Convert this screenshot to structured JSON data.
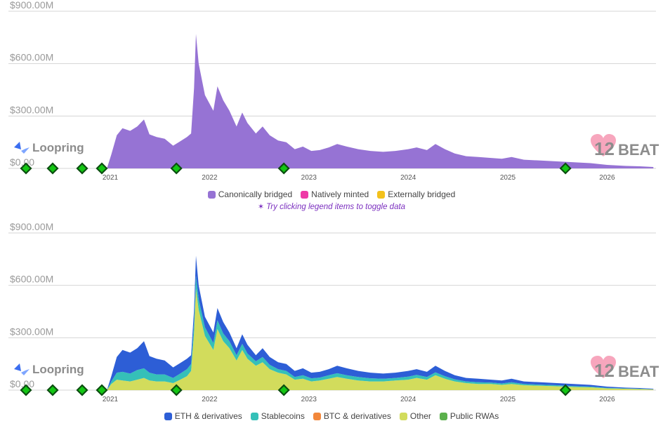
{
  "colors": {
    "canonically_bridged": "#9673d4",
    "natively_minted": "#ee3aa6",
    "externally_bridged": "#f3c11c",
    "eth": "#2d5ed6",
    "stablecoins": "#35c0b8",
    "btc": "#f2873a",
    "other": "#d2dc5c",
    "public_rwas": "#5bb04c",
    "milestone_fill": "#13c613",
    "milestone_border": "#0b4d10",
    "heart": "#f7a6bd"
  },
  "branding": {
    "project_name": "Loopring",
    "watermark_digits": "12",
    "watermark_word": "BEAT"
  },
  "hint": {
    "icon": "pointer-click-icon",
    "text": "Try clicking legend items to toggle data"
  },
  "legend_top": [
    {
      "label": "Canonically bridged",
      "color": "#9673d4"
    },
    {
      "label": "Natively minted",
      "color": "#ee3aa6"
    },
    {
      "label": "Externally bridged",
      "color": "#f3c11c"
    }
  ],
  "legend_bottom": [
    {
      "label": "ETH & derivatives",
      "color": "#2d5ed6"
    },
    {
      "label": "Stablecoins",
      "color": "#35c0b8"
    },
    {
      "label": "BTC & derivatives",
      "color": "#f2873a"
    },
    {
      "label": "Other",
      "color": "#d2dc5c"
    },
    {
      "label": "Public RWAs",
      "color": "#5bb04c"
    }
  ],
  "chart_data": [
    {
      "type": "area",
      "stacked": true,
      "x_ticks": [
        "2021",
        "2022",
        "2023",
        "2024",
        "2025",
        "2026"
      ],
      "y_ticks": [
        "$0.00",
        "$300.00M",
        "$600.00M",
        "$900.00M"
      ],
      "ylim": [
        0,
        900
      ],
      "y_unit": "USD millions",
      "grid": true,
      "legend_position": "bottom",
      "milestones": [
        "2020-01-20",
        "2020-05-10",
        "2020-09-05",
        "2020-12-10",
        "2021-09-01",
        "2022-10-01",
        "2025-08-01"
      ],
      "x": [
        "2020-12-20",
        "2021-01-05",
        "2021-01-25",
        "2021-02-15",
        "2021-03-15",
        "2021-04-10",
        "2021-05-05",
        "2021-05-25",
        "2021-06-20",
        "2021-07-20",
        "2021-08-20",
        "2021-09-15",
        "2021-10-10",
        "2021-10-25",
        "2021-11-05",
        "2021-11-12",
        "2021-11-22",
        "2021-12-15",
        "2022-01-15",
        "2022-01-30",
        "2022-02-20",
        "2022-03-15",
        "2022-04-10",
        "2022-05-01",
        "2022-05-20",
        "2022-06-20",
        "2022-07-15",
        "2022-08-10",
        "2022-09-10",
        "2022-10-10",
        "2022-11-10",
        "2022-12-10",
        "2023-01-10",
        "2023-02-10",
        "2023-03-15",
        "2023-04-15",
        "2023-05-20",
        "2023-07-01",
        "2023-08-15",
        "2023-10-01",
        "2023-11-15",
        "2024-01-01",
        "2024-02-01",
        "2024-03-10",
        "2024-04-10",
        "2024-05-15",
        "2024-06-20",
        "2024-08-01",
        "2024-09-15",
        "2024-11-01",
        "2024-12-10",
        "2025-01-15",
        "2025-03-01",
        "2025-05-01",
        "2025-07-01",
        "2025-09-01",
        "2025-11-01",
        "2026-01-01",
        "2026-03-01",
        "2026-05-01",
        "2026-06-20"
      ],
      "series": [
        {
          "name": "Canonically bridged",
          "values": [
            2,
            80,
            190,
            230,
            215,
            240,
            280,
            195,
            180,
            170,
            130,
            155,
            180,
            200,
            460,
            770,
            600,
            420,
            330,
            470,
            390,
            330,
            240,
            320,
            260,
            200,
            240,
            190,
            160,
            150,
            110,
            125,
            100,
            105,
            120,
            140,
            125,
            110,
            100,
            95,
            100,
            110,
            120,
            105,
            140,
            110,
            85,
            70,
            65,
            60,
            55,
            65,
            50,
            45,
            40,
            35,
            30,
            20,
            15,
            12,
            8
          ]
        },
        {
          "name": "Natively minted",
          "values": [
            0,
            0,
            0,
            0,
            0,
            0,
            0,
            0,
            0,
            0,
            0,
            0,
            0,
            0,
            0,
            0,
            0,
            0,
            0,
            0,
            0,
            0,
            0,
            0,
            0,
            0,
            0,
            0,
            0,
            0,
            0,
            0,
            0,
            0,
            0,
            0,
            0,
            0,
            0,
            0,
            0,
            0,
            0,
            0,
            0,
            0,
            0,
            0,
            0,
            0,
            0,
            0,
            0,
            0,
            0,
            0,
            0,
            0,
            0,
            0,
            0
          ]
        },
        {
          "name": "Externally bridged",
          "values": [
            0,
            0,
            0,
            0,
            0,
            0,
            0,
            0,
            0,
            0,
            0,
            0,
            0,
            0,
            0,
            0,
            0,
            0,
            0,
            0,
            0,
            0,
            0,
            0,
            0,
            0,
            0,
            0,
            0,
            0,
            0,
            0,
            0,
            0,
            0,
            0,
            0,
            0,
            0,
            0,
            0,
            0,
            0,
            0,
            0,
            0,
            0,
            0,
            0,
            0,
            0,
            0,
            0,
            0,
            0,
            0,
            0,
            0,
            0,
            0,
            0
          ]
        }
      ]
    },
    {
      "type": "area",
      "stacked": true,
      "x_ticks": [
        "2021",
        "2022",
        "2023",
        "2024",
        "2025",
        "2026"
      ],
      "y_ticks": [
        "$0.00",
        "$300.00M",
        "$600.00M",
        "$900.00M"
      ],
      "ylim": [
        0,
        900
      ],
      "y_unit": "USD millions",
      "grid": true,
      "legend_position": "bottom",
      "milestones": [
        "2020-01-20",
        "2020-05-10",
        "2020-09-05",
        "2020-12-10",
        "2021-09-01",
        "2022-10-01",
        "2025-08-01"
      ],
      "x": [
        "2020-12-20",
        "2021-01-05",
        "2021-01-25",
        "2021-02-15",
        "2021-03-15",
        "2021-04-10",
        "2021-05-05",
        "2021-05-25",
        "2021-06-20",
        "2021-07-20",
        "2021-08-20",
        "2021-09-15",
        "2021-10-10",
        "2021-10-25",
        "2021-11-05",
        "2021-11-12",
        "2021-11-22",
        "2021-12-15",
        "2022-01-15",
        "2022-01-30",
        "2022-02-20",
        "2022-03-15",
        "2022-04-10",
        "2022-05-01",
        "2022-05-20",
        "2022-06-20",
        "2022-07-15",
        "2022-08-10",
        "2022-09-10",
        "2022-10-10",
        "2022-11-10",
        "2022-12-10",
        "2023-01-10",
        "2023-02-10",
        "2023-03-15",
        "2023-04-15",
        "2023-05-20",
        "2023-07-01",
        "2023-08-15",
        "2023-10-01",
        "2023-11-15",
        "2024-01-01",
        "2024-02-01",
        "2024-03-10",
        "2024-04-10",
        "2024-05-15",
        "2024-06-20",
        "2024-08-01",
        "2024-09-15",
        "2024-11-01",
        "2024-12-10",
        "2025-01-15",
        "2025-03-01",
        "2025-05-01",
        "2025-07-01",
        "2025-09-01",
        "2025-11-01",
        "2026-01-01",
        "2026-03-01",
        "2026-05-01",
        "2026-06-20"
      ],
      "series": [
        {
          "name": "Other",
          "values": [
            1,
            35,
            60,
            55,
            50,
            60,
            70,
            55,
            50,
            50,
            40,
            60,
            80,
            110,
            330,
            580,
            460,
            310,
            230,
            350,
            280,
            240,
            170,
            230,
            180,
            140,
            160,
            120,
            100,
            90,
            60,
            65,
            50,
            55,
            65,
            75,
            65,
            55,
            50,
            50,
            55,
            60,
            70,
            60,
            85,
            65,
            50,
            40,
            35,
            35,
            30,
            35,
            28,
            25,
            22,
            18,
            16,
            10,
            8,
            6,
            4
          ]
        },
        {
          "name": "Stablecoins",
          "values": [
            0,
            15,
            40,
            50,
            45,
            55,
            55,
            45,
            40,
            40,
            30,
            35,
            40,
            40,
            60,
            75,
            60,
            50,
            40,
            50,
            45,
            40,
            30,
            35,
            30,
            25,
            30,
            25,
            20,
            20,
            15,
            20,
            18,
            17,
            20,
            22,
            20,
            20,
            18,
            15,
            15,
            17,
            17,
            15,
            17,
            15,
            12,
            10,
            10,
            8,
            8,
            10,
            7,
            6,
            6,
            5,
            4,
            3,
            2,
            2,
            1
          ]
        },
        {
          "name": "ETH & derivatives",
          "values": [
            1,
            30,
            90,
            125,
            120,
            125,
            155,
            95,
            90,
            80,
            60,
            60,
            60,
            50,
            70,
            115,
            80,
            60,
            60,
            70,
            65,
            50,
            40,
            55,
            50,
            35,
            50,
            45,
            40,
            40,
            35,
            40,
            32,
            33,
            35,
            43,
            40,
            35,
            32,
            30,
            30,
            33,
            33,
            30,
            38,
            30,
            23,
            20,
            20,
            17,
            17,
            20,
            15,
            14,
            12,
            12,
            10,
            7,
            5,
            4,
            3
          ]
        },
        {
          "name": "BTC & derivatives",
          "values": [
            0,
            0,
            0,
            0,
            0,
            0,
            0,
            0,
            0,
            0,
            0,
            0,
            0,
            0,
            0,
            0,
            0,
            0,
            0,
            0,
            0,
            0,
            0,
            0,
            0,
            0,
            0,
            0,
            0,
            0,
            0,
            0,
            0,
            0,
            0,
            0,
            0,
            0,
            0,
            0,
            0,
            0,
            0,
            0,
            0,
            0,
            0,
            0,
            0,
            0,
            0,
            0,
            0,
            0,
            0,
            0,
            0,
            0,
            0,
            0,
            0
          ]
        },
        {
          "name": "Public RWAs",
          "values": [
            0,
            0,
            0,
            0,
            0,
            0,
            0,
            0,
            0,
            0,
            0,
            0,
            0,
            0,
            0,
            0,
            0,
            0,
            0,
            0,
            0,
            0,
            0,
            0,
            0,
            0,
            0,
            0,
            0,
            0,
            0,
            0,
            0,
            0,
            0,
            0,
            0,
            0,
            0,
            0,
            0,
            0,
            0,
            0,
            0,
            0,
            0,
            0,
            0,
            0,
            0,
            0,
            0,
            0,
            0,
            0,
            0,
            0,
            0,
            0,
            0
          ]
        }
      ]
    }
  ]
}
